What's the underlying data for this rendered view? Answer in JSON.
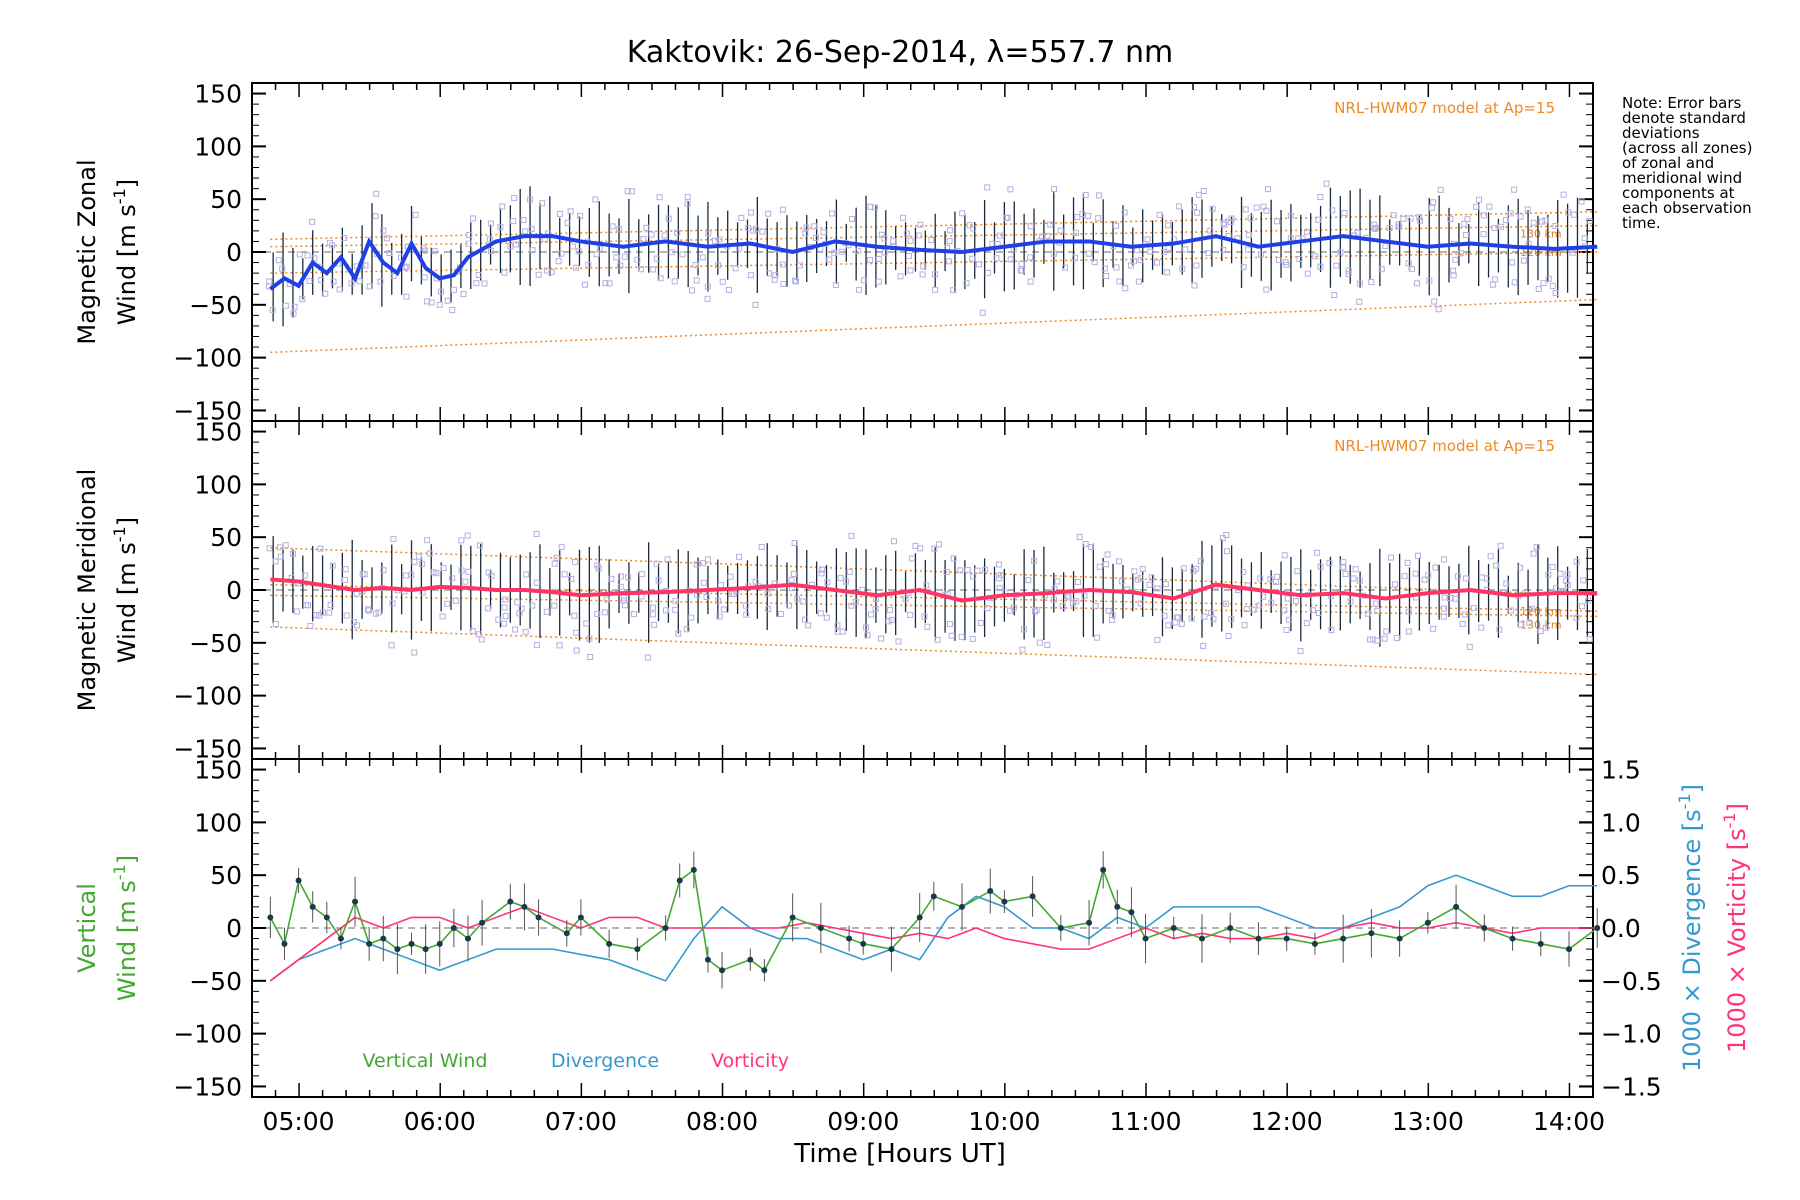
{
  "title": "Kaktovik: 26-Sep-2014, λ=557.7 nm",
  "note": [
    "Note: Error bars",
    "denote standard",
    "deviations",
    "(across all zones)",
    "of zonal and",
    "meridional wind",
    "components at",
    "each observation",
    "time."
  ],
  "colors": {
    "zonal": "#1f3fe8",
    "meridional": "#ff3366",
    "vertical": "#44a832",
    "divergence": "#3399cc",
    "vorticity": "#ff3377",
    "model": "#f08a24",
    "zone_points": "#b4aee0",
    "points": "#1a3a4a",
    "errorbar": "#1a2a3a"
  },
  "chart_data": [
    {
      "type": "line",
      "panel": "zonal",
      "ylabel_line1": "Magnetic Zonal",
      "ylabel_line2": "Wind [m s",
      "ylabel_sup": "-1",
      "ylabel_end": "]",
      "ylim": [
        -160,
        160
      ],
      "yticks": [
        "150",
        "100",
        "50",
        "0",
        "−50",
        "−100",
        "−150"
      ],
      "model_label": "NRL-HWM07 model at Ap=15",
      "model_altitude_labels": [
        "120 km",
        "130 km"
      ],
      "x": [
        4.8,
        4.9,
        5.0,
        5.1,
        5.2,
        5.3,
        5.4,
        5.5,
        5.6,
        5.7,
        5.8,
        5.9,
        6.0,
        6.1,
        6.2,
        6.4,
        6.6,
        6.8,
        7.0,
        7.3,
        7.6,
        7.9,
        8.2,
        8.5,
        8.8,
        9.1,
        9.4,
        9.7,
        10.0,
        10.3,
        10.6,
        10.9,
        11.2,
        11.5,
        11.8,
        12.1,
        12.4,
        12.7,
        13.0,
        13.3,
        13.6,
        13.9,
        14.2
      ],
      "values": [
        -35,
        -25,
        -32,
        -10,
        -20,
        -5,
        -25,
        10,
        -10,
        -20,
        8,
        -15,
        -25,
        -22,
        -5,
        10,
        15,
        15,
        10,
        5,
        10,
        5,
        8,
        0,
        10,
        5,
        2,
        0,
        5,
        10,
        10,
        5,
        8,
        15,
        5,
        10,
        15,
        10,
        5,
        8,
        5,
        3,
        5
      ],
      "model_curves": [
        {
          "x": [
            4.8,
            14.2
          ],
          "y": [
            -95,
            -45
          ]
        },
        {
          "x": [
            4.8,
            14.2
          ],
          "y": [
            -20,
            0
          ]
        },
        {
          "x": [
            4.8,
            14.2
          ],
          "y": [
            5,
            25
          ]
        },
        {
          "x": [
            4.8,
            14.2
          ],
          "y": [
            12,
            38
          ]
        }
      ]
    },
    {
      "type": "line",
      "panel": "meridional",
      "ylabel_line1": "Magnetic Meridional",
      "ylabel_line2": "Wind [m s",
      "ylabel_sup": "-1",
      "ylabel_end": "]",
      "ylim": [
        -160,
        160
      ],
      "yticks": [
        "150",
        "100",
        "50",
        "0",
        "−50",
        "−100",
        "−150"
      ],
      "model_label": "NRL-HWM07 model at Ap=15",
      "model_altitude_labels": [
        "120 km",
        "130 km"
      ],
      "x": [
        4.8,
        5.0,
        5.2,
        5.4,
        5.6,
        5.8,
        6.0,
        6.2,
        6.4,
        6.6,
        6.8,
        7.0,
        7.3,
        7.6,
        7.9,
        8.2,
        8.5,
        8.8,
        9.1,
        9.4,
        9.7,
        10.0,
        10.3,
        10.6,
        10.9,
        11.2,
        11.5,
        11.8,
        12.1,
        12.4,
        12.7,
        13.0,
        13.3,
        13.6,
        13.9,
        14.2
      ],
      "values": [
        10,
        8,
        4,
        0,
        2,
        0,
        3,
        2,
        0,
        0,
        -2,
        -5,
        -3,
        -2,
        0,
        2,
        5,
        0,
        -5,
        0,
        -10,
        -5,
        -3,
        0,
        -2,
        -8,
        5,
        0,
        -5,
        -3,
        -8,
        -3,
        0,
        -5,
        -3,
        -3
      ],
      "model_curves": [
        {
          "x": [
            4.8,
            14.2
          ],
          "y": [
            -35,
            -80
          ]
        },
        {
          "x": [
            4.8,
            14.2
          ],
          "y": [
            5,
            -20
          ]
        },
        {
          "x": [
            4.8,
            14.2
          ],
          "y": [
            -5,
            -25
          ]
        },
        {
          "x": [
            4.8,
            14.2
          ],
          "y": [
            40,
            -5
          ]
        }
      ]
    },
    {
      "type": "line",
      "panel": "vertical",
      "ylabel_line1": "Vertical",
      "ylabel_line2": "Wind [m s",
      "ylabel_sup": "-1",
      "ylabel_end": "]",
      "ylim": [
        -160,
        160
      ],
      "yticks": [
        "150",
        "100",
        "50",
        "0",
        "−50",
        "−100",
        "−150"
      ],
      "y2lim": [
        -1.6,
        1.6
      ],
      "y2ticks": [
        "1.5",
        "1.0",
        "0.5",
        "0.0",
        "−0.5",
        "−1.0",
        "−1.5"
      ],
      "y2label_div": "1000 × Divergence [s",
      "y2label_vor": "1000 × Vorticity [s",
      "y2label_sup": "-1",
      "y2label_end": "]",
      "legend": [
        "Vertical Wind",
        "Divergence",
        "Vorticity"
      ],
      "series": [
        {
          "name": "Vertical Wind",
          "x": [
            4.8,
            4.9,
            5.0,
            5.1,
            5.2,
            5.3,
            5.4,
            5.5,
            5.6,
            5.7,
            5.8,
            5.9,
            6.0,
            6.1,
            6.2,
            6.3,
            6.5,
            6.6,
            6.7,
            6.9,
            7.0,
            7.2,
            7.4,
            7.6,
            7.7,
            7.8,
            7.9,
            8.0,
            8.2,
            8.3,
            8.5,
            8.7,
            8.9,
            9.0,
            9.2,
            9.4,
            9.5,
            9.7,
            9.9,
            10.0,
            10.2,
            10.4,
            10.6,
            10.7,
            10.8,
            10.9,
            11.0,
            11.2,
            11.4,
            11.6,
            11.8,
            12.0,
            12.2,
            12.4,
            12.6,
            12.8,
            13.0,
            13.2,
            13.4,
            13.6,
            13.8,
            14.0,
            14.2
          ],
          "values": [
            10,
            -15,
            45,
            20,
            10,
            -10,
            25,
            -15,
            -10,
            -20,
            -15,
            -20,
            -15,
            0,
            -10,
            5,
            25,
            20,
            10,
            -5,
            10,
            -15,
            -20,
            0,
            45,
            55,
            -30,
            -40,
            -30,
            -40,
            10,
            0,
            -10,
            -15,
            -20,
            10,
            30,
            20,
            35,
            25,
            30,
            0,
            5,
            55,
            20,
            15,
            -10,
            0,
            -10,
            0,
            -10,
            -10,
            -15,
            -10,
            -5,
            -10,
            5,
            20,
            0,
            -10,
            -15,
            -20,
            0
          ]
        },
        {
          "name": "Divergence",
          "x": [
            4.8,
            5.0,
            5.2,
            5.4,
            5.6,
            5.8,
            6.0,
            6.2,
            6.4,
            6.8,
            7.2,
            7.6,
            7.8,
            8.0,
            8.2,
            8.4,
            8.6,
            8.8,
            9.0,
            9.2,
            9.4,
            9.6,
            9.8,
            10.0,
            10.2,
            10.4,
            10.6,
            10.8,
            11.0,
            11.2,
            11.4,
            11.6,
            11.8,
            12.0,
            12.2,
            12.4,
            12.6,
            12.8,
            13.0,
            13.2,
            13.4,
            13.6,
            13.8,
            14.0,
            14.2
          ],
          "values": [
            -0.5,
            -0.3,
            -0.2,
            -0.1,
            -0.2,
            -0.3,
            -0.4,
            -0.3,
            -0.2,
            -0.2,
            -0.3,
            -0.5,
            -0.1,
            0.2,
            0.0,
            -0.1,
            -0.1,
            -0.2,
            -0.3,
            -0.2,
            -0.3,
            0.1,
            0.3,
            0.2,
            0.0,
            0.0,
            -0.1,
            0.1,
            0.0,
            0.2,
            0.2,
            0.2,
            0.2,
            0.1,
            0.0,
            0.0,
            0.1,
            0.2,
            0.4,
            0.5,
            0.4,
            0.3,
            0.3,
            0.4,
            0.4
          ]
        },
        {
          "name": "Vorticity",
          "x": [
            4.8,
            5.0,
            5.2,
            5.4,
            5.6,
            5.8,
            6.0,
            6.2,
            6.4,
            6.6,
            6.8,
            7.0,
            7.2,
            7.4,
            7.6,
            7.8,
            8.0,
            8.2,
            8.4,
            8.6,
            8.8,
            9.0,
            9.2,
            9.4,
            9.6,
            9.8,
            10.0,
            10.2,
            10.4,
            10.6,
            10.8,
            11.0,
            11.2,
            11.4,
            11.6,
            11.8,
            12.0,
            12.2,
            12.4,
            12.6,
            12.8,
            13.0,
            13.2,
            13.4,
            13.6,
            13.8,
            14.0,
            14.2
          ],
          "values": [
            -0.5,
            -0.3,
            -0.1,
            0.1,
            0.0,
            0.1,
            0.1,
            0.0,
            0.1,
            0.2,
            0.1,
            0.0,
            0.1,
            0.1,
            0.0,
            0.0,
            0.0,
            0.0,
            0.0,
            0.05,
            0.0,
            -0.05,
            -0.1,
            -0.05,
            -0.1,
            0.0,
            -0.1,
            -0.15,
            -0.2,
            -0.2,
            -0.1,
            0.0,
            -0.1,
            -0.05,
            -0.1,
            -0.1,
            -0.05,
            -0.1,
            0.0,
            0.05,
            0.0,
            0.0,
            0.05,
            0.0,
            -0.05,
            0.0,
            0.0,
            0.0
          ]
        }
      ]
    }
  ],
  "xaxis": {
    "xlim": [
      4.67,
      14.17
    ],
    "tick_values": [
      5,
      6,
      7,
      8,
      9,
      10,
      11,
      12,
      13,
      14
    ],
    "tick_labels": [
      "05:00",
      "06:00",
      "07:00",
      "08:00",
      "09:00",
      "10:00",
      "11:00",
      "12:00",
      "13:00",
      "14:00"
    ],
    "xlabel": "Time [Hours UT]"
  }
}
